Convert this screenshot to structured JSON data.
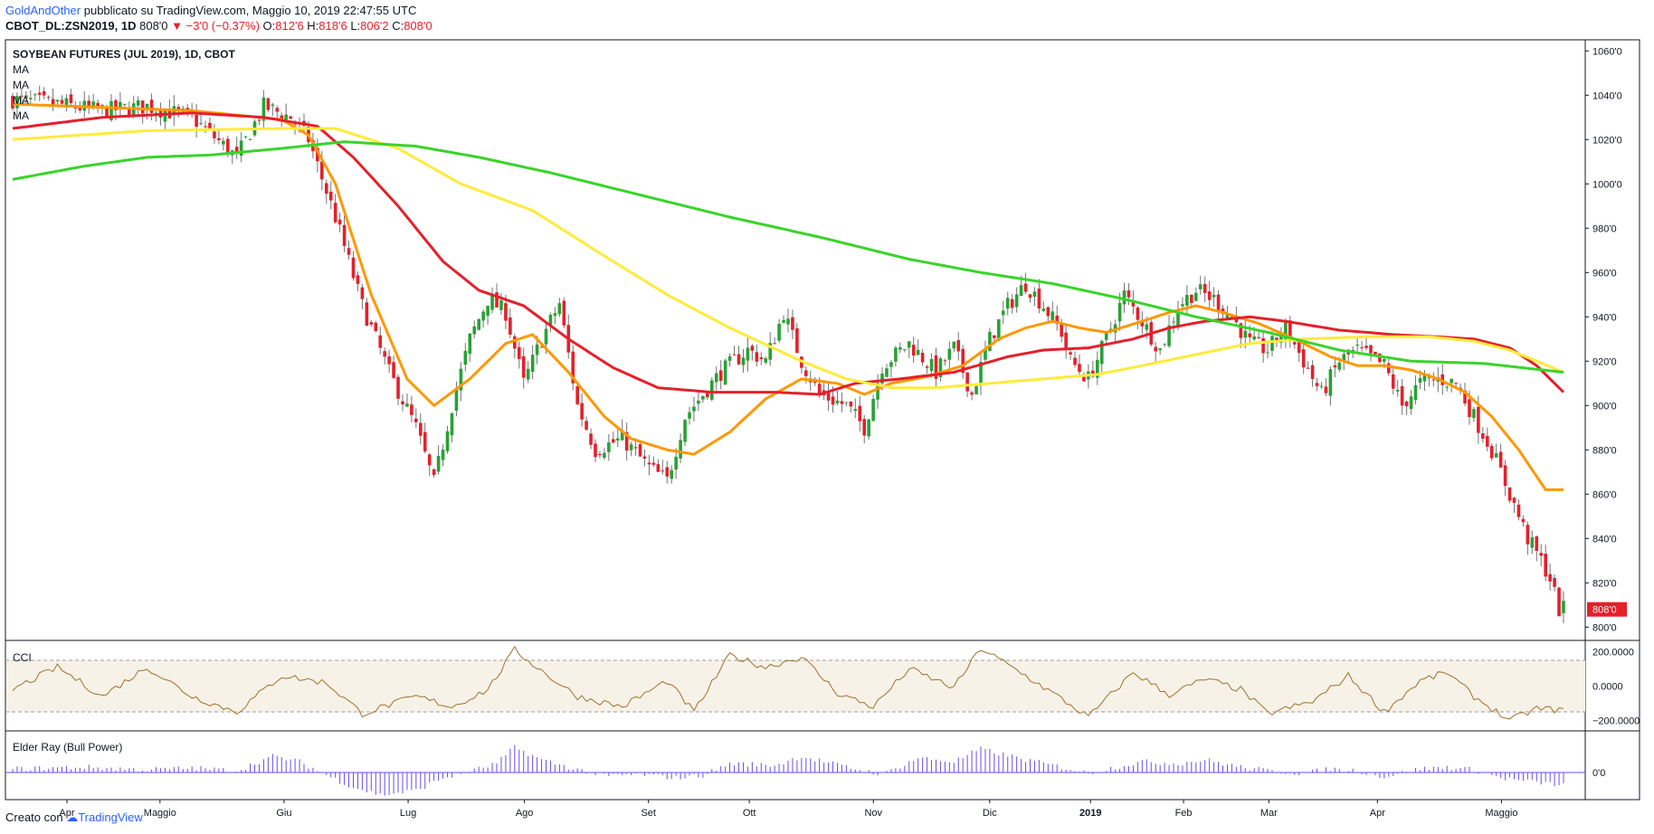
{
  "header": {
    "author": "GoldAndOther",
    "published": "pubblicato su TradingView.com, Maggio 10, 2019 22:47:55 UTC",
    "symbol": "CBOT_DL:ZSN2019, 1D",
    "last": "808'0",
    "change": "−3'0 (−0.37%)",
    "o_label": "O:",
    "o": "812'6",
    "h_label": "H:",
    "h": "818'6",
    "l_label": "L:",
    "l": "806'2",
    "c_label": "C:",
    "c": "808'0"
  },
  "legend": {
    "title": "SOYBEAN FUTURES (JUL 2019), 1D, CBOT",
    "ma_labels": [
      "MA",
      "MA",
      "MA",
      "MA"
    ]
  },
  "footer": {
    "created_with": "Creato con",
    "brand": "TradingView"
  },
  "colors": {
    "up": "#27a234",
    "down": "#e5202a",
    "ma_orange": "#ff9800",
    "ma_red": "#e5202a",
    "ma_yellow": "#ffeb3b",
    "ma_green": "#39d42a",
    "cci": "#a0712c",
    "cci_band": "#f7f2e8",
    "bull": "#6a4cf0",
    "badge": "#e5202a"
  },
  "chart_data": [
    {
      "type": "candlestick",
      "title": "SOYBEAN FUTURES (JUL 2019), 1D, CBOT",
      "x_labels": [
        "Apr",
        "Maggio",
        "Giu",
        "Lug",
        "Ago",
        "Set",
        "Ott",
        "Nov",
        "Dic",
        "2019",
        "Feb",
        "Mar",
        "Apr",
        "Maggio"
      ],
      "x_label_bold": "2019",
      "y_ticks": [
        "1060'0",
        "1040'0",
        "1020'0",
        "1000'0",
        "980'0",
        "960'0",
        "940'0",
        "920'0",
        "900'0",
        "880'0",
        "860'0",
        "840'0",
        "820'0",
        "800'0"
      ],
      "ylim": [
        794,
        1065
      ],
      "last_price_badge": "808'0",
      "close_anchors": [
        [
          0,
          1038
        ],
        [
          10,
          1036
        ],
        [
          20,
          1033
        ],
        [
          30,
          1035
        ],
        [
          40,
          1030
        ],
        [
          50,
          1012
        ],
        [
          56,
          1035
        ],
        [
          62,
          1030
        ],
        [
          66,
          1020
        ],
        [
          72,
          985
        ],
        [
          78,
          945
        ],
        [
          84,
          915
        ],
        [
          90,
          890
        ],
        [
          94,
          865
        ],
        [
          98,
          900
        ],
        [
          102,
          930
        ],
        [
          106,
          948
        ],
        [
          110,
          942
        ],
        [
          114,
          910
        ],
        [
          118,
          930
        ],
        [
          122,
          946
        ],
        [
          126,
          900
        ],
        [
          130,
          880
        ],
        [
          136,
          885
        ],
        [
          142,
          872
        ],
        [
          146,
          866
        ],
        [
          150,
          895
        ],
        [
          154,
          905
        ],
        [
          158,
          915
        ],
        [
          164,
          925
        ],
        [
          168,
          920
        ],
        [
          172,
          942
        ],
        [
          176,
          920
        ],
        [
          180,
          905
        ],
        [
          186,
          900
        ],
        [
          190,
          890
        ],
        [
          194,
          918
        ],
        [
          200,
          928
        ],
        [
          206,
          915
        ],
        [
          210,
          926
        ],
        [
          214,
          905
        ],
        [
          218,
          930
        ],
        [
          222,
          945
        ],
        [
          226,
          955
        ],
        [
          230,
          945
        ],
        [
          234,
          933
        ],
        [
          236,
          920
        ],
        [
          240,
          912
        ],
        [
          244,
          930
        ],
        [
          248,
          950
        ],
        [
          252,
          938
        ],
        [
          256,
          925
        ],
        [
          260,
          945
        ],
        [
          264,
          952
        ],
        [
          268,
          948
        ],
        [
          272,
          940
        ],
        [
          276,
          928
        ],
        [
          280,
          925
        ],
        [
          284,
          935
        ],
        [
          288,
          920
        ],
        [
          292,
          905
        ],
        [
          296,
          920
        ],
        [
          300,
          925
        ],
        [
          306,
          918
        ],
        [
          310,
          900
        ],
        [
          314,
          910
        ],
        [
          318,
          912
        ],
        [
          322,
          910
        ],
        [
          326,
          895
        ],
        [
          330,
          880
        ],
        [
          334,
          860
        ],
        [
          338,
          840
        ],
        [
          341,
          830
        ],
        [
          343,
          822
        ],
        [
          345,
          808
        ]
      ],
      "moving_averages": [
        {
          "label": "MA",
          "color": "orange",
          "anchors": [
            [
              0,
              1036
            ],
            [
              40,
              1033
            ],
            [
              60,
              1029
            ],
            [
              66,
              1022
            ],
            [
              72,
              1000
            ],
            [
              80,
              950
            ],
            [
              88,
              912
            ],
            [
              94,
              900
            ],
            [
              102,
              912
            ],
            [
              110,
              928
            ],
            [
              116,
              932
            ],
            [
              124,
              915
            ],
            [
              132,
              895
            ],
            [
              138,
              885
            ],
            [
              146,
              880
            ],
            [
              152,
              878
            ],
            [
              160,
              888
            ],
            [
              168,
              903
            ],
            [
              176,
              912
            ],
            [
              184,
              910
            ],
            [
              190,
              905
            ],
            [
              196,
              910
            ],
            [
              204,
              913
            ],
            [
              212,
              918
            ],
            [
              220,
              930
            ],
            [
              226,
              935
            ],
            [
              232,
              938
            ],
            [
              238,
              935
            ],
            [
              244,
              933
            ],
            [
              252,
              938
            ],
            [
              258,
              942
            ],
            [
              264,
              945
            ],
            [
              270,
              942
            ],
            [
              278,
              937
            ],
            [
              286,
              930
            ],
            [
              294,
              922
            ],
            [
              300,
              918
            ],
            [
              306,
              918
            ],
            [
              312,
              916
            ],
            [
              318,
              912
            ],
            [
              324,
              906
            ],
            [
              330,
              895
            ],
            [
              336,
              880
            ],
            [
              342,
              862
            ]
          ]
        },
        {
          "label": "MA",
          "color": "red",
          "anchors": [
            [
              0,
              1025
            ],
            [
              20,
              1030
            ],
            [
              40,
              1032
            ],
            [
              56,
              1030
            ],
            [
              68,
              1026
            ],
            [
              76,
              1012
            ],
            [
              86,
              990
            ],
            [
              96,
              965
            ],
            [
              104,
              952
            ],
            [
              114,
              945
            ],
            [
              124,
              930
            ],
            [
              134,
              917
            ],
            [
              144,
              908
            ],
            [
              156,
              906
            ],
            [
              170,
              906
            ],
            [
              180,
              905
            ],
            [
              188,
              910
            ],
            [
              198,
              912
            ],
            [
              210,
              915
            ],
            [
              222,
              922
            ],
            [
              230,
              925
            ],
            [
              240,
              926
            ],
            [
              250,
              930
            ],
            [
              258,
              935
            ],
            [
              266,
              938
            ],
            [
              276,
              940
            ],
            [
              284,
              938
            ],
            [
              296,
              934
            ],
            [
              308,
              932
            ],
            [
              318,
              931
            ],
            [
              326,
              930
            ],
            [
              334,
              926
            ],
            [
              340,
              918
            ],
            [
              346,
              906
            ]
          ]
        },
        {
          "label": "MA",
          "color": "yellow",
          "anchors": [
            [
              0,
              1020
            ],
            [
              30,
              1024
            ],
            [
              60,
              1025
            ],
            [
              72,
              1025
            ],
            [
              86,
              1016
            ],
            [
              100,
              1000
            ],
            [
              116,
              988
            ],
            [
              130,
              970
            ],
            [
              146,
              950
            ],
            [
              160,
              935
            ],
            [
              176,
              920
            ],
            [
              186,
              912
            ],
            [
              196,
              908
            ],
            [
              206,
              908
            ],
            [
              218,
              910
            ],
            [
              230,
              912
            ],
            [
              242,
              914
            ],
            [
              252,
              918
            ],
            [
              264,
              923
            ],
            [
              276,
              928
            ],
            [
              288,
              930
            ],
            [
              302,
              931
            ],
            [
              316,
              931
            ],
            [
              326,
              929
            ],
            [
              334,
              925
            ],
            [
              340,
              920
            ],
            [
              346,
              915
            ]
          ]
        },
        {
          "label": "MA",
          "color": "green",
          "anchors": [
            [
              0,
              1002
            ],
            [
              16,
              1008
            ],
            [
              30,
              1012
            ],
            [
              44,
              1013
            ],
            [
              60,
              1016
            ],
            [
              74,
              1019
            ],
            [
              90,
              1017
            ],
            [
              104,
              1012
            ],
            [
              120,
              1005
            ],
            [
              140,
              995
            ],
            [
              160,
              985
            ],
            [
              180,
              976
            ],
            [
              200,
              966
            ],
            [
              216,
              960
            ],
            [
              232,
              955
            ],
            [
              248,
              948
            ],
            [
              264,
              940
            ],
            [
              280,
              933
            ],
            [
              296,
              925
            ],
            [
              312,
              920
            ],
            [
              328,
              919
            ],
            [
              346,
              915
            ]
          ]
        }
      ]
    },
    {
      "type": "line",
      "title": "CCI",
      "y_ticks": [
        "200.0000",
        "0.0000",
        "−200.0000"
      ],
      "ylim": [
        -260,
        260
      ],
      "band": [
        -150,
        150
      ],
      "anchors": [
        [
          0,
          -20
        ],
        [
          10,
          110
        ],
        [
          20,
          -60
        ],
        [
          30,
          110
        ],
        [
          40,
          -60
        ],
        [
          50,
          -150
        ],
        [
          60,
          60
        ],
        [
          70,
          20
        ],
        [
          78,
          -160
        ],
        [
          90,
          -60
        ],
        [
          98,
          -120
        ],
        [
          106,
          -20
        ],
        [
          112,
          210
        ],
        [
          120,
          50
        ],
        [
          126,
          -60
        ],
        [
          136,
          -120
        ],
        [
          146,
          30
        ],
        [
          152,
          -150
        ],
        [
          160,
          180
        ],
        [
          168,
          110
        ],
        [
          176,
          170
        ],
        [
          184,
          -40
        ],
        [
          192,
          -120
        ],
        [
          200,
          100
        ],
        [
          210,
          -10
        ],
        [
          216,
          220
        ],
        [
          226,
          60
        ],
        [
          232,
          -40
        ],
        [
          240,
          -180
        ],
        [
          250,
          80
        ],
        [
          258,
          -50
        ],
        [
          266,
          40
        ],
        [
          274,
          -20
        ],
        [
          280,
          -160
        ],
        [
          290,
          -90
        ],
        [
          298,
          60
        ],
        [
          306,
          -150
        ],
        [
          314,
          30
        ],
        [
          320,
          80
        ],
        [
          326,
          -60
        ],
        [
          334,
          -200
        ],
        [
          340,
          -130
        ],
        [
          346,
          -140
        ]
      ]
    },
    {
      "type": "bar",
      "title": "Elder Ray (Bull Power)",
      "y_ticks": [
        "0'0"
      ],
      "ylim": [
        -30,
        45
      ],
      "anchors": [
        [
          0,
          4
        ],
        [
          16,
          6
        ],
        [
          30,
          3
        ],
        [
          40,
          5
        ],
        [
          50,
          2
        ],
        [
          58,
          18
        ],
        [
          64,
          12
        ],
        [
          70,
          -3
        ],
        [
          76,
          -16
        ],
        [
          82,
          -25
        ],
        [
          90,
          -20
        ],
        [
          96,
          -6
        ],
        [
          102,
          1
        ],
        [
          108,
          10
        ],
        [
          112,
          28
        ],
        [
          118,
          14
        ],
        [
          124,
          6
        ],
        [
          132,
          -4
        ],
        [
          140,
          -2
        ],
        [
          148,
          -6
        ],
        [
          154,
          -3
        ],
        [
          160,
          10
        ],
        [
          170,
          8
        ],
        [
          176,
          18
        ],
        [
          186,
          6
        ],
        [
          194,
          -2
        ],
        [
          202,
          16
        ],
        [
          210,
          12
        ],
        [
          216,
          26
        ],
        [
          226,
          14
        ],
        [
          236,
          4
        ],
        [
          240,
          -1
        ],
        [
          246,
          6
        ],
        [
          252,
          12
        ],
        [
          260,
          10
        ],
        [
          266,
          14
        ],
        [
          274,
          6
        ],
        [
          280,
          2
        ],
        [
          288,
          -1
        ],
        [
          294,
          4
        ],
        [
          300,
          2
        ],
        [
          306,
          -5
        ],
        [
          314,
          4
        ],
        [
          320,
          6
        ],
        [
          326,
          3
        ],
        [
          332,
          -6
        ],
        [
          338,
          -10
        ],
        [
          346,
          -14
        ]
      ]
    }
  ]
}
